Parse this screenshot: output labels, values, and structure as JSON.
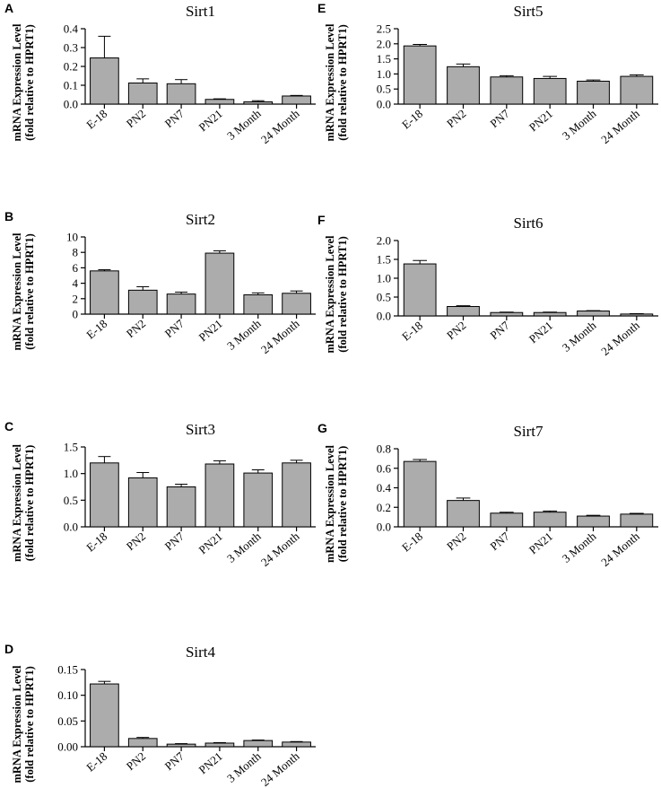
{
  "figure": {
    "categories": [
      "E-18",
      "PN2",
      "PN7",
      "PN21",
      "3 Month",
      "24 Month"
    ],
    "ylabel_line1": "mRNA Expression Level",
    "ylabel_line2": "(fold relative to HPRT1)",
    "bar_color": "#acacac"
  },
  "chart_data": [
    {
      "type": "bar",
      "panel": "A",
      "title": "Sirt1",
      "categories": [
        "E-18",
        "PN2",
        "PN7",
        "PN21",
        "3 Month",
        "24 Month"
      ],
      "values": [
        0.245,
        0.112,
        0.108,
        0.025,
        0.012,
        0.043
      ],
      "errors": [
        0.115,
        0.022,
        0.022,
        0.003,
        0.006,
        0.003
      ],
      "ylim": [
        0,
        0.4
      ],
      "yticks": [
        "0.0",
        "0.1",
        "0.2",
        "0.3",
        "0.4"
      ],
      "xlabel": "",
      "ylabel": "mRNA Expression Level (fold relative to HPRT1)"
    },
    {
      "type": "bar",
      "panel": "B",
      "title": "Sirt2",
      "categories": [
        "E-18",
        "PN2",
        "PN7",
        "PN21",
        "3 Month",
        "24 Month"
      ],
      "values": [
        5.6,
        3.1,
        2.6,
        7.9,
        2.5,
        2.7
      ],
      "errors": [
        0.15,
        0.45,
        0.25,
        0.3,
        0.25,
        0.3
      ],
      "ylim": [
        0,
        10
      ],
      "yticks": [
        "0",
        "2",
        "4",
        "6",
        "8",
        "10"
      ],
      "xlabel": "",
      "ylabel": "mRNA Expression Level (fold relative to HPRT1)"
    },
    {
      "type": "bar",
      "panel": "C",
      "title": "Sirt3",
      "categories": [
        "E-18",
        "PN2",
        "PN7",
        "PN21",
        "3 Month",
        "24 Month"
      ],
      "values": [
        1.2,
        0.92,
        0.75,
        1.18,
        1.01,
        1.2
      ],
      "errors": [
        0.12,
        0.1,
        0.05,
        0.06,
        0.06,
        0.05
      ],
      "ylim": [
        0,
        1.5
      ],
      "yticks": [
        "0.0",
        "0.5",
        "1.0",
        "1.5"
      ],
      "xlabel": "",
      "ylabel": "mRNA Expression Level (fold relative to HPRT1)"
    },
    {
      "type": "bar",
      "panel": "D",
      "title": "Sirt4",
      "categories": [
        "E-18",
        "PN2",
        "PN7",
        "PN21",
        "3 Month",
        "24 Month"
      ],
      "values": [
        0.122,
        0.016,
        0.005,
        0.007,
        0.012,
        0.009
      ],
      "errors": [
        0.005,
        0.002,
        0.001,
        0.001,
        0.001,
        0.001
      ],
      "ylim": [
        0,
        0.15
      ],
      "yticks": [
        "0.00",
        "0.05",
        "0.10",
        "0.15"
      ],
      "xlabel": "",
      "ylabel": "mRNA Expression Level (fold relative to HPRT1)"
    },
    {
      "type": "bar",
      "panel": "E",
      "title": "Sirt5",
      "categories": [
        "E-18",
        "PN2",
        "PN7",
        "PN21",
        "3 Month",
        "24 Month"
      ],
      "values": [
        1.93,
        1.24,
        0.9,
        0.85,
        0.76,
        0.92
      ],
      "errors": [
        0.05,
        0.09,
        0.04,
        0.07,
        0.04,
        0.05
      ],
      "ylim": [
        0,
        2.5
      ],
      "yticks": [
        "0.0",
        "0.5",
        "1.0",
        "1.5",
        "2.0",
        "2.5"
      ],
      "xlabel": "",
      "ylabel": "mRNA Expression Level (fold relative to HPRT1)"
    },
    {
      "type": "bar",
      "panel": "F",
      "title": "Sirt6",
      "categories": [
        "E-18",
        "PN2",
        "PN7",
        "PN21",
        "3 Month",
        "24 Month"
      ],
      "values": [
        1.38,
        0.25,
        0.09,
        0.09,
        0.13,
        0.05
      ],
      "errors": [
        0.09,
        0.02,
        0.01,
        0.01,
        0.01,
        0.01
      ],
      "ylim": [
        0,
        2.0
      ],
      "yticks": [
        "0.0",
        "0.5",
        "1.0",
        "1.5",
        "2.0"
      ],
      "xlabel": "",
      "ylabel": "mRNA Expression Level (fold relative to HPRT1)"
    },
    {
      "type": "bar",
      "panel": "G",
      "title": "Sirt7",
      "categories": [
        "E-18",
        "PN2",
        "PN7",
        "PN21",
        "3 Month",
        "24 Month"
      ],
      "values": [
        0.67,
        0.27,
        0.14,
        0.15,
        0.11,
        0.13
      ],
      "errors": [
        0.02,
        0.025,
        0.01,
        0.012,
        0.008,
        0.008
      ],
      "ylim": [
        0,
        0.8
      ],
      "yticks": [
        "0.0",
        "0.2",
        "0.4",
        "0.6",
        "0.8"
      ],
      "xlabel": "",
      "ylabel": "mRNA Expression Level (fold relative to HPRT1)"
    }
  ]
}
